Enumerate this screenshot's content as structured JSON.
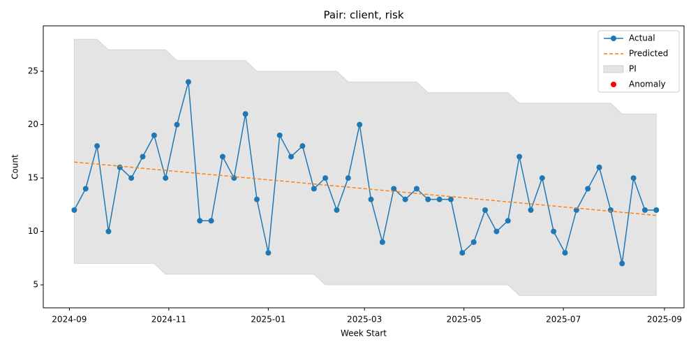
{
  "chart_data": {
    "type": "line",
    "title": "Pair: client, risk",
    "xlabel": "Week Start",
    "ylabel": "Count",
    "x": [
      "2024-09-04",
      "2024-09-11",
      "2024-09-18",
      "2024-09-25",
      "2024-10-02",
      "2024-10-09",
      "2024-10-16",
      "2024-10-23",
      "2024-10-30",
      "2024-11-06",
      "2024-11-13",
      "2024-11-20",
      "2024-11-27",
      "2024-12-04",
      "2024-12-11",
      "2024-12-18",
      "2024-12-25",
      "2025-01-01",
      "2025-01-08",
      "2025-01-15",
      "2025-01-22",
      "2025-01-29",
      "2025-02-05",
      "2025-02-12",
      "2025-02-19",
      "2025-02-26",
      "2025-03-05",
      "2025-03-12",
      "2025-03-19",
      "2025-03-26",
      "2025-04-02",
      "2025-04-09",
      "2025-04-16",
      "2025-04-23",
      "2025-04-30",
      "2025-05-07",
      "2025-05-14",
      "2025-05-21",
      "2025-05-28",
      "2025-06-04",
      "2025-06-11",
      "2025-06-18",
      "2025-06-25",
      "2025-07-02",
      "2025-07-09",
      "2025-07-16",
      "2025-07-23",
      "2025-07-30",
      "2025-08-06",
      "2025-08-13",
      "2025-08-20",
      "2025-08-27"
    ],
    "series": [
      {
        "name": "Actual",
        "color": "#1f77b4",
        "values": [
          12,
          14,
          18,
          10,
          16,
          15,
          17,
          19,
          15,
          20,
          24,
          11,
          11,
          17,
          15,
          21,
          13,
          8,
          19,
          17,
          18,
          14,
          15,
          12,
          15,
          20,
          13,
          9,
          14,
          13,
          14,
          13,
          13,
          13,
          8,
          9,
          12,
          10,
          11,
          17,
          12,
          15,
          10,
          8,
          12,
          14,
          16,
          12,
          7,
          15,
          12,
          12
        ]
      },
      {
        "name": "Predicted",
        "color": "#ff7f0e",
        "dashed": true,
        "values": [
          16.5,
          16.4,
          16.3,
          16.21,
          16.11,
          16.01,
          15.91,
          15.81,
          15.72,
          15.62,
          15.52,
          15.42,
          15.32,
          15.23,
          15.13,
          15.03,
          14.93,
          14.83,
          14.74,
          14.64,
          14.54,
          14.44,
          14.34,
          14.25,
          14.15,
          14.05,
          13.95,
          13.85,
          13.75,
          13.66,
          13.56,
          13.46,
          13.36,
          13.26,
          13.17,
          13.07,
          12.97,
          12.87,
          12.77,
          12.68,
          12.58,
          12.48,
          12.38,
          12.28,
          12.19,
          12.09,
          11.99,
          11.89,
          11.79,
          11.7,
          11.6,
          11.5
        ]
      }
    ],
    "interval": {
      "name": "PI",
      "color": "#e4e4e4",
      "upper": [
        28,
        28,
        28,
        27,
        27,
        27,
        27,
        27,
        27,
        26,
        26,
        26,
        26,
        26,
        26,
        26,
        25,
        25,
        25,
        25,
        25,
        25,
        25,
        25,
        24,
        24,
        24,
        24,
        24,
        24,
        24,
        23,
        23,
        23,
        23,
        23,
        23,
        23,
        23,
        22,
        22,
        22,
        22,
        22,
        22,
        22,
        22,
        22,
        21,
        21,
        21,
        21
      ],
      "lower": [
        7,
        7,
        7,
        7,
        7,
        7,
        7,
        7,
        6,
        6,
        6,
        6,
        6,
        6,
        6,
        6,
        6,
        6,
        6,
        6,
        6,
        6,
        5,
        5,
        5,
        5,
        5,
        5,
        5,
        5,
        5,
        5,
        5,
        5,
        5,
        5,
        5,
        5,
        5,
        4,
        4,
        4,
        4,
        4,
        4,
        4,
        4,
        4,
        4,
        4,
        4,
        4
      ]
    },
    "anomalies": {
      "name": "Anomaly",
      "color": "#ff0000",
      "x": [],
      "values": []
    },
    "xlim": [
      "2024-08-16",
      "2025-09-13"
    ],
    "xticks": [
      {
        "value": "2024-09-01",
        "label": "2024-09"
      },
      {
        "value": "2024-11-01",
        "label": "2024-11"
      },
      {
        "value": "2025-01-01",
        "label": "2025-01"
      },
      {
        "value": "2025-03-01",
        "label": "2025-03"
      },
      {
        "value": "2025-05-01",
        "label": "2025-05"
      },
      {
        "value": "2025-07-01",
        "label": "2025-07"
      },
      {
        "value": "2025-09-01",
        "label": "2025-09"
      }
    ],
    "ylim": [
      2.85,
      29.25
    ],
    "yticks": [
      5,
      10,
      15,
      20,
      25
    ],
    "grid": false,
    "legend": "upper right"
  }
}
